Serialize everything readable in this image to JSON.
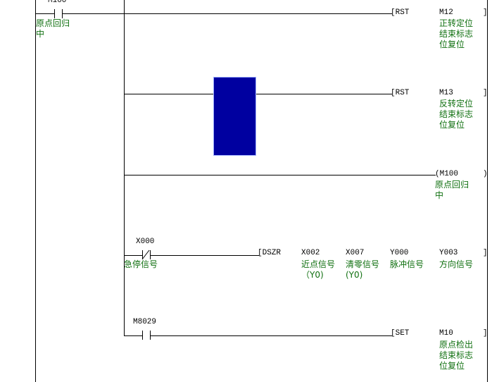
{
  "rungs": [
    {
      "contact": {
        "device": "M100",
        "type": "NO",
        "comment": "原点回归\n中"
      },
      "outputs": [
        {
          "instruction": "RST",
          "operand": "M12",
          "comment": "正转定位\n结束标志\n位复位"
        },
        {
          "instruction": "RST",
          "operand": "M13",
          "comment": "反转定位\n结束标志\n位复位"
        },
        {
          "instruction": "OUT",
          "operand": "M100",
          "comment": "原点回归\n中"
        }
      ]
    },
    {
      "contact": {
        "device": "X000",
        "type": "NC",
        "comment": "急停信号"
      },
      "instruction": "DSZR",
      "operands": [
        {
          "device": "X002",
          "comment": "近点信号\n（Y0)"
        },
        {
          "device": "X007",
          "comment": "清零信号\n(Y0)"
        },
        {
          "device": "Y000",
          "comment": "脉冲信号"
        },
        {
          "device": "Y003",
          "comment": "方向信号"
        }
      ]
    },
    {
      "contact": {
        "device": "M8029",
        "type": "NO"
      },
      "instruction": "SET",
      "operand": "M10",
      "comment": "原点检出\n结束标志\n位复位"
    }
  ],
  "colors": {
    "comment": "#107010",
    "selection": "#0000a0"
  }
}
